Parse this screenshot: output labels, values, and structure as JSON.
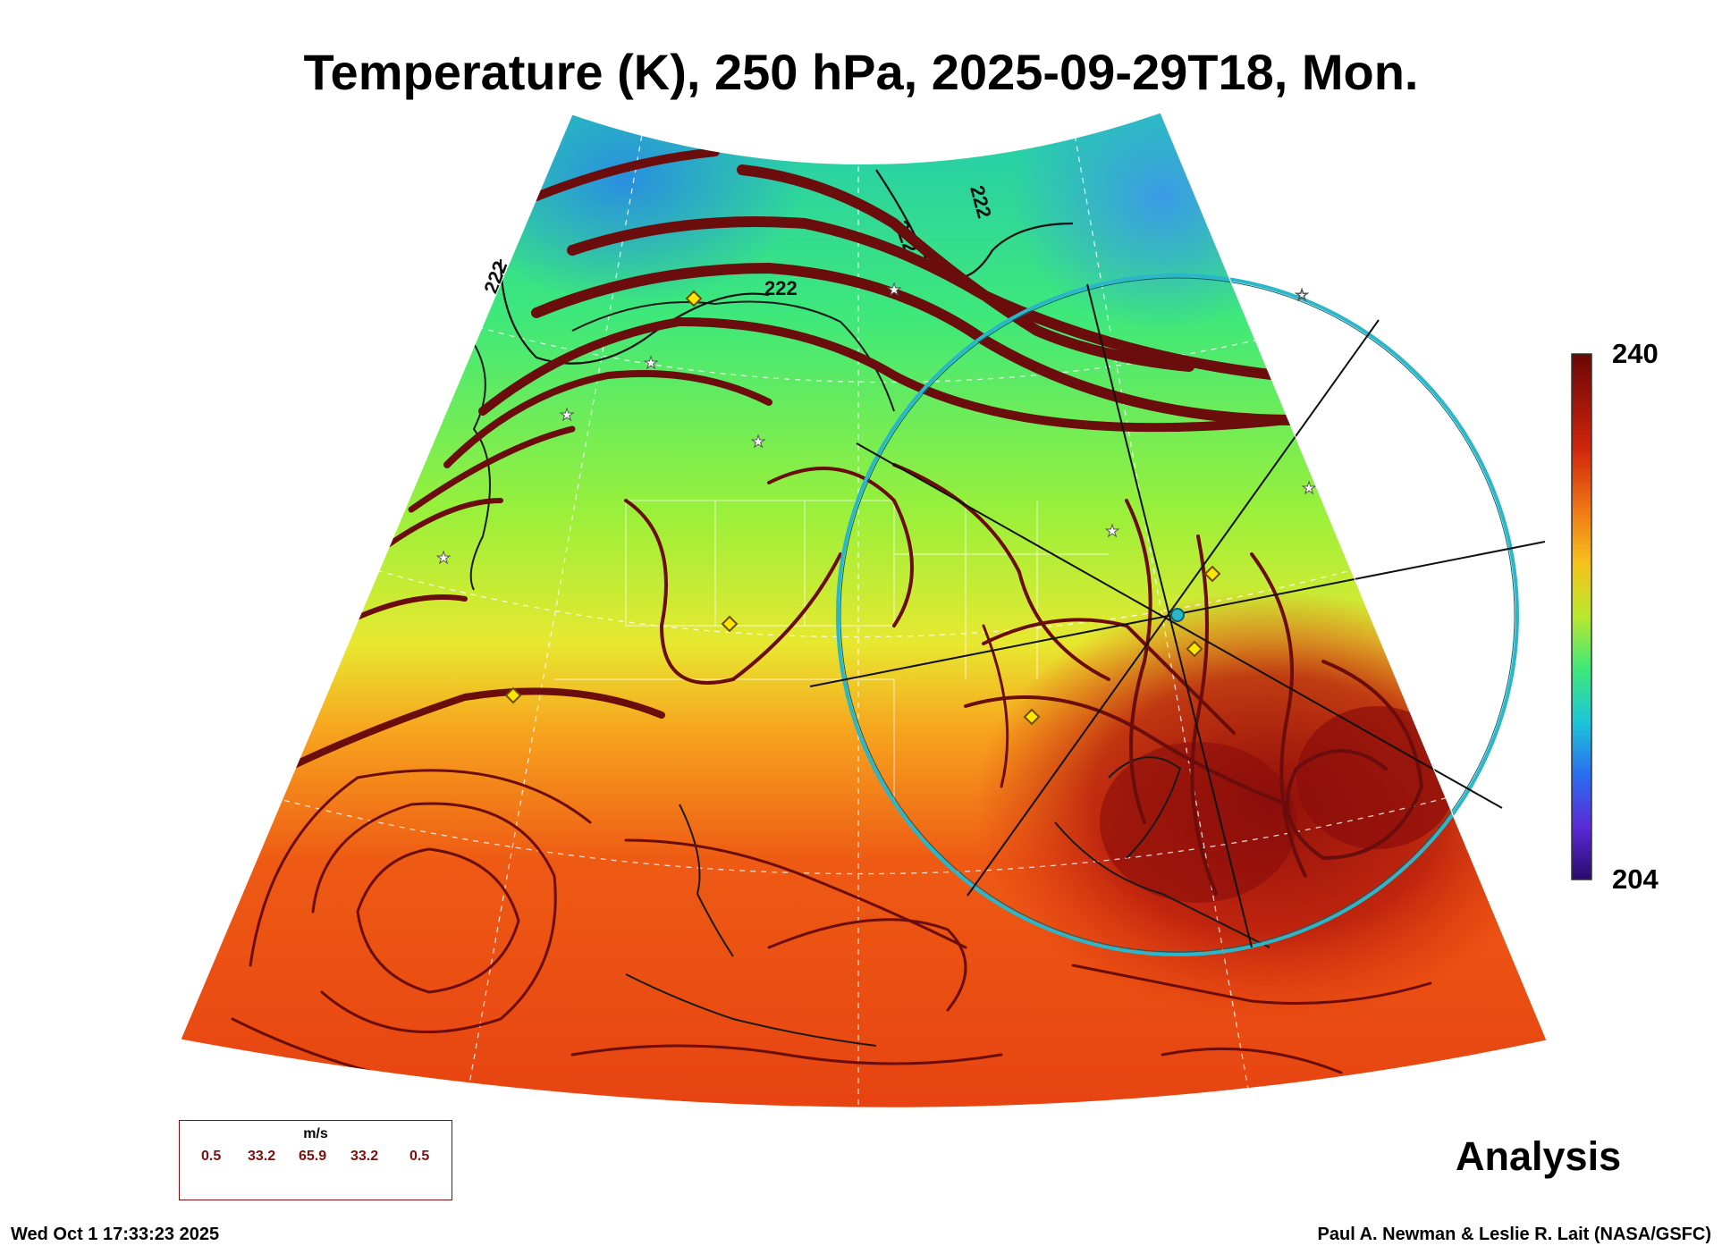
{
  "title": "Temperature (K), 250 hPa, 2025-09-29T18, Mon.",
  "colorbar": {
    "max_label": "240",
    "min_label": "204",
    "range_K": [
      204,
      240
    ],
    "palette": "rainbow (purple → blue → green → yellow → orange → dark red)"
  },
  "contour_labels": [
    "222",
    "222",
    "222",
    "222"
  ],
  "wind_legend": {
    "unit": "m/s",
    "values": [
      "0.5",
      "33.2",
      "65.9",
      "33.2",
      "0.5"
    ]
  },
  "panel_label": "Analysis",
  "timestamp": "Wed Oct  1 17:33:23 2025",
  "credit": "Paul A. Newman & Leslie R. Lait (NASA/GSFC)",
  "colors": {
    "streamline": "#6b0d0d",
    "range_ring": "#2ab7c9",
    "cold": "#1a6fd6",
    "warm": "#c21a0a"
  }
}
